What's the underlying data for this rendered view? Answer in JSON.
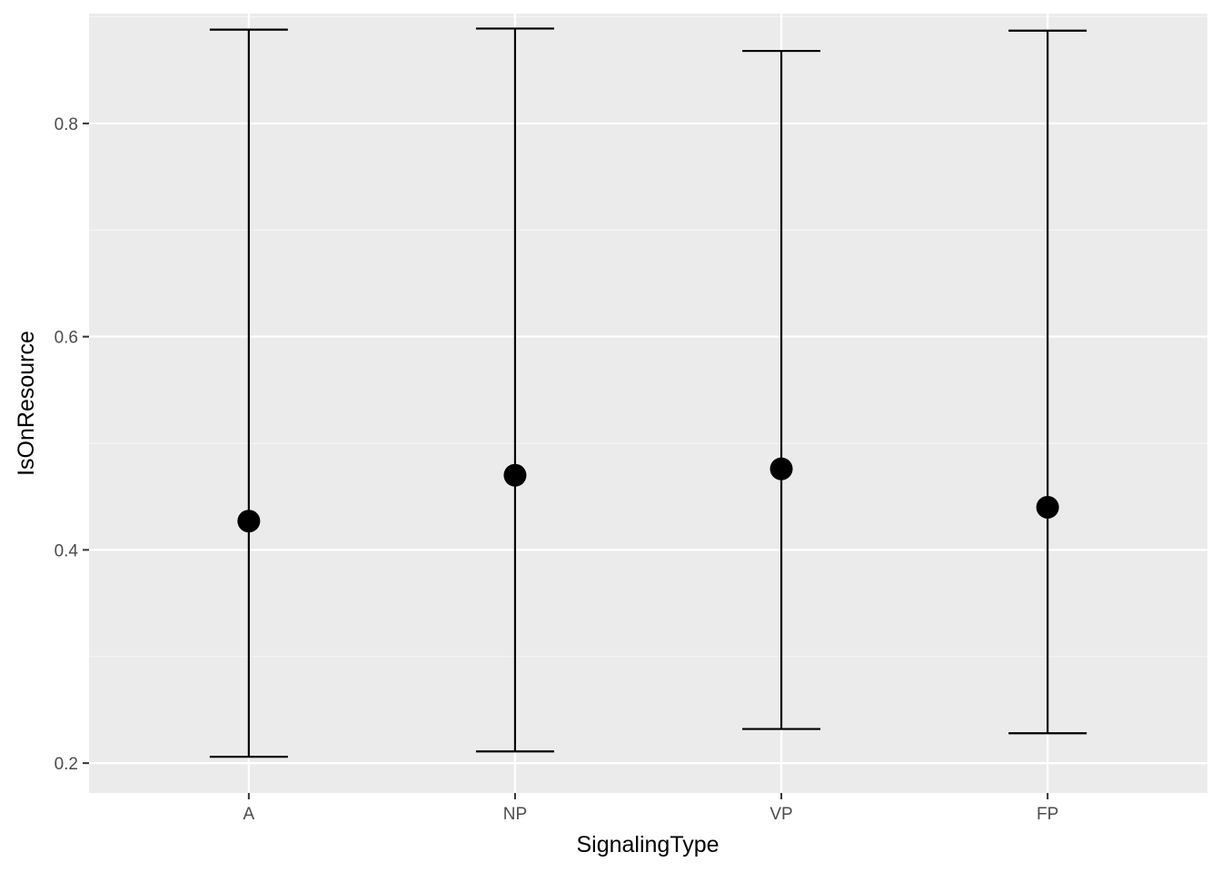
{
  "chart_data": {
    "type": "scatter",
    "title": "",
    "xlabel": "SignalingType",
    "ylabel": "IsOnResource",
    "categories": [
      "A",
      "NP",
      "VP",
      "FP"
    ],
    "series": [
      {
        "values": [
          0.427,
          0.47,
          0.476,
          0.44
        ],
        "lower": [
          0.206,
          0.211,
          0.232,
          0.228
        ],
        "upper": [
          0.888,
          0.889,
          0.868,
          0.887
        ]
      }
    ],
    "ylim": [
      0.172,
      0.903
    ],
    "yticks": [
      0.2,
      0.4,
      0.6,
      0.8
    ],
    "ytick_labels": [
      "0.2",
      "0.4",
      "0.6",
      "0.8"
    ],
    "grid": true,
    "legend": "none",
    "colors": {
      "panel_background": "#ebebeb",
      "grid_major": "#ffffff",
      "grid_minor": "#f5f5f5",
      "mark": "#000000",
      "tick_label": "#4d4d4d"
    }
  }
}
